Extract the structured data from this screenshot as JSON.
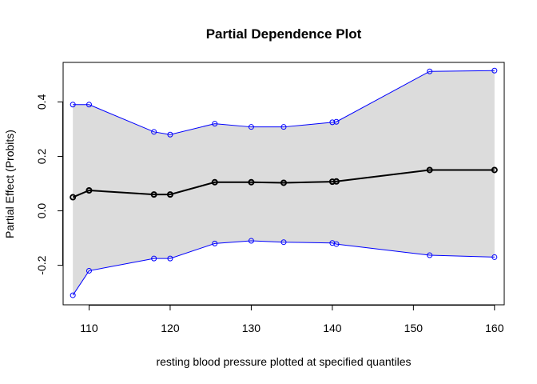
{
  "chart_data": {
    "type": "line",
    "title": "Partial Dependence Plot",
    "xlabel": "resting blood pressure plotted at specified quantiles",
    "ylabel": "Partial Effect (Probits)",
    "xlim": [
      106.8,
      161.2
    ],
    "ylim": [
      -0.345,
      0.545
    ],
    "x_ticks": [
      110,
      120,
      130,
      140,
      150,
      160
    ],
    "x_tick_labels": [
      "110",
      "120",
      "130",
      "140",
      "150",
      "160"
    ],
    "y_ticks": [
      -0.2,
      0.0,
      0.2,
      0.4
    ],
    "y_tick_labels": [
      "-0.2",
      "0.0",
      "0.2",
      "0.4"
    ],
    "grid": false,
    "x": [
      108,
      110,
      118,
      120,
      125.5,
      130,
      134,
      140,
      140.5,
      152,
      160
    ],
    "series": [
      {
        "role": "estimate",
        "color": "#000000",
        "values": [
          0.05,
          0.075,
          0.06,
          0.06,
          0.105,
          0.105,
          0.103,
          0.107,
          0.108,
          0.15,
          0.15
        ]
      },
      {
        "role": "upper-band",
        "color": "#0000ff",
        "values": [
          0.39,
          0.39,
          0.29,
          0.28,
          0.32,
          0.308,
          0.308,
          0.325,
          0.327,
          0.512,
          0.515
        ]
      },
      {
        "role": "lower-band",
        "color": "#0000ff",
        "values": [
          -0.31,
          -0.22,
          -0.175,
          -0.175,
          -0.12,
          -0.11,
          -0.115,
          -0.118,
          -0.122,
          -0.163,
          -0.17
        ]
      }
    ],
    "band_fill": "#dcdcdc"
  }
}
